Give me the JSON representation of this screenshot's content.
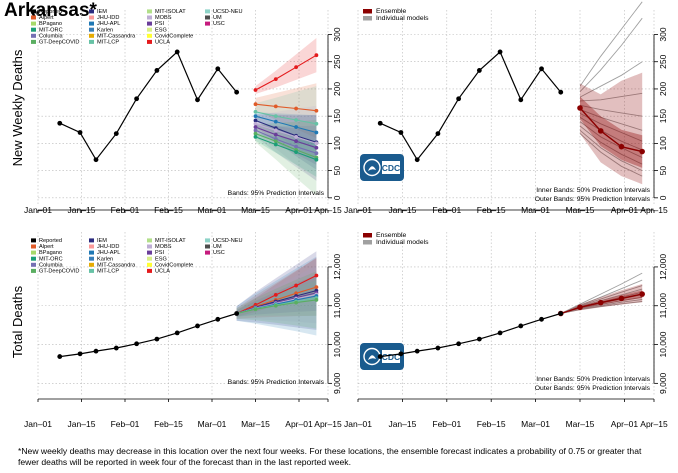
{
  "page": {
    "title": "Arkansas*",
    "footnote": "*New weekly deaths may decrease in this location over the next four weeks. For these locations, the ensemble forecast indicates a probability of 0.75 or greater that fewer deaths will be reported in week four of the forecast than in the last reported week."
  },
  "colors": {
    "reported": "#000000",
    "ensemble": "#8b0000",
    "individual": "#a0a0a0",
    "cdc_logo": "#1a5b8e"
  },
  "icons": {
    "cdc_logo": "cdc-logo-icon"
  },
  "legend_models": [
    {
      "name": "Reported",
      "color": "#000000"
    },
    {
      "name": "Alpert",
      "color": "#e05a28"
    },
    {
      "name": "BPagano",
      "color": "#a6d96a"
    },
    {
      "name": "MIT-ORC",
      "color": "#1b9e77"
    },
    {
      "name": "Columbia",
      "color": "#7570b3"
    },
    {
      "name": "GT-DeepCOVID",
      "color": "#5aae61"
    },
    {
      "name": "IEM",
      "color": "#2b2b7f"
    },
    {
      "name": "JHU-IDD",
      "color": "#fb9a99"
    },
    {
      "name": "JHU-APL",
      "color": "#1f78b4"
    },
    {
      "name": "Karlen",
      "color": "#377eb8"
    },
    {
      "name": "MIT-Cassandra",
      "color": "#e6ab02"
    },
    {
      "name": "MIT-LCP",
      "color": "#66c2a5"
    },
    {
      "name": "MIT-ISOLAT",
      "color": "#b2df8a"
    },
    {
      "name": "MOBS",
      "color": "#beaed4"
    },
    {
      "name": "PSI",
      "color": "#6a3d9a"
    },
    {
      "name": "ESG",
      "color": "#d9ef8b"
    },
    {
      "name": "CovidComplete",
      "color": "#ffff33"
    },
    {
      "name": "UCLA",
      "color": "#e41a1c"
    },
    {
      "name": "UCSD-NEU",
      "color": "#8dd3c7"
    },
    {
      "name": "UM",
      "color": "#4d4d4d"
    },
    {
      "name": "USC",
      "color": "#c51b7d"
    }
  ],
  "chart_data": [
    {
      "id": "weekly-models",
      "type": "line",
      "ylabel": "New Weekly Deaths",
      "ylim": [
        -15,
        345
      ],
      "yticks": [
        0,
        50,
        100,
        150,
        200,
        250,
        300
      ],
      "ytick_labels": [
        "0",
        "50",
        "100",
        "150",
        "200",
        "250",
        "300"
      ],
      "xlim": [
        0,
        20
      ],
      "xticks": [
        0,
        3,
        6,
        9,
        12,
        15,
        18,
        20
      ],
      "xtick_labels": [
        "Jan–01",
        "Jan–15",
        "Feb–01",
        "Feb–15",
        "Mar–01",
        "Mar–15",
        "Apr–01",
        "Apr–15"
      ],
      "reported": {
        "name": "Reported",
        "x": [
          1.5,
          2.9,
          4.0,
          5.4,
          6.8,
          8.2,
          9.6,
          11.0,
          12.4,
          13.7
        ],
        "y": [
          137,
          120,
          70,
          118,
          182,
          234,
          268,
          180,
          237,
          194
        ]
      },
      "forecast_x": [
        15.0,
        16.4,
        17.8,
        19.2
      ],
      "model_series": [
        {
          "name": "UCLA",
          "values": [
            198,
            218,
            240,
            262
          ]
        },
        {
          "name": "Alpert",
          "values": [
            172,
            168,
            164,
            160
          ]
        },
        {
          "name": "MIT-LCP",
          "values": [
            158,
            150,
            143,
            136
          ]
        },
        {
          "name": "JHU-APL",
          "values": [
            150,
            140,
            130,
            120
          ]
        },
        {
          "name": "IEM",
          "values": [
            142,
            128,
            114,
            102
          ]
        },
        {
          "name": "MOBS",
          "values": [
            136,
            124,
            112,
            100
          ]
        },
        {
          "name": "PSI",
          "values": [
            130,
            116,
            104,
            92
          ]
        },
        {
          "name": "Columbia",
          "values": [
            124,
            108,
            94,
            82
          ]
        },
        {
          "name": "GT-DeepCOVID",
          "values": [
            118,
            104,
            88,
            74
          ]
        },
        {
          "name": "MIT-ORC",
          "values": [
            112,
            98,
            84,
            70
          ]
        }
      ],
      "band_label": "Bands: 95% Prediction Intervals",
      "legend": "legend_models"
    },
    {
      "id": "weekly-ensemble",
      "type": "line",
      "ylabel": "",
      "ylim": [
        -15,
        345
      ],
      "yticks": [
        0,
        50,
        100,
        150,
        200,
        250,
        300
      ],
      "ytick_labels": [
        "0",
        "50",
        "100",
        "150",
        "200",
        "250",
        "300"
      ],
      "xlim": [
        0,
        20
      ],
      "xticks": [
        0,
        3,
        6,
        9,
        12,
        15,
        18,
        20
      ],
      "xtick_labels": [
        "Jan–01",
        "Jan–15",
        "Feb–01",
        "Feb–15",
        "Mar–01",
        "Mar–15",
        "Apr–01",
        "Apr–15"
      ],
      "reported": {
        "name": "Reported",
        "x": [
          1.5,
          2.9,
          4.0,
          5.4,
          6.8,
          8.2,
          9.6,
          11.0,
          12.4,
          13.7
        ],
        "y": [
          137,
          120,
          70,
          118,
          182,
          234,
          268,
          180,
          237,
          194
        ]
      },
      "ensemble": {
        "name": "Ensemble",
        "x": [
          15.0,
          16.4,
          17.8,
          19.2
        ],
        "y": [
          165,
          123,
          94,
          85
        ],
        "inner": [
          [
            145,
            186
          ],
          [
            95,
            150
          ],
          [
            70,
            125
          ],
          [
            55,
            115
          ]
        ],
        "outer": [
          [
            118,
            210
          ],
          [
            65,
            190
          ],
          [
            40,
            215
          ],
          [
            25,
            230
          ]
        ]
      },
      "individual": [
        {
          "values": [
            205,
            260,
            310,
            360
          ]
        },
        {
          "values": [
            195,
            235,
            280,
            330
          ]
        },
        {
          "values": [
            185,
            205,
            225,
            250
          ]
        },
        {
          "values": [
            178,
            180,
            186,
            192
          ]
        },
        {
          "values": [
            170,
            162,
            156,
            150
          ]
        },
        {
          "values": [
            162,
            148,
            136,
            124
          ]
        },
        {
          "values": [
            155,
            136,
            120,
            104
          ]
        },
        {
          "values": [
            148,
            124,
            104,
            88
          ]
        },
        {
          "values": [
            140,
            112,
            92,
            74
          ]
        },
        {
          "values": [
            132,
            102,
            80,
            62
          ]
        },
        {
          "values": [
            124,
            92,
            68,
            50
          ]
        },
        {
          "values": [
            118,
            84,
            58,
            40
          ]
        }
      ],
      "legend": [
        {
          "name": "Ensemble",
          "color": "#8b0000"
        },
        {
          "name": "Individual models",
          "color": "#a0a0a0"
        }
      ],
      "band_labels": [
        "Inner Bands: 50% Prediction Intervals",
        "Outer Bands: 95% Prediction Intervals"
      ]
    },
    {
      "id": "total-models",
      "type": "line",
      "ylabel": "Total Deaths",
      "ylim": [
        8700,
        12900
      ],
      "yticks": [
        9000,
        10000,
        11000,
        12000
      ],
      "ytick_labels": [
        "9,000",
        "10,000",
        "11,000",
        "12,000"
      ],
      "xlim": [
        0,
        20
      ],
      "xticks": [
        0,
        3,
        6,
        9,
        12,
        15,
        18,
        20
      ],
      "xtick_labels": [
        "Jan–01",
        "Jan–15",
        "Feb–01",
        "Feb–15",
        "Mar–01",
        "Mar–15",
        "Apr–01",
        "Apr–15"
      ],
      "reported": {
        "name": "Reported",
        "x": [
          1.5,
          2.9,
          4.0,
          5.4,
          6.8,
          8.2,
          9.6,
          11.0,
          12.4,
          13.7
        ],
        "y": [
          9690,
          9760,
          9830,
          9910,
          10020,
          10140,
          10300,
          10480,
          10650,
          10800
        ]
      },
      "forecast_x": [
        13.7,
        15.0,
        16.4,
        17.8,
        19.2
      ],
      "model_series": [
        {
          "name": "UCLA",
          "values": [
            10800,
            11020,
            11280,
            11520,
            11780
          ]
        },
        {
          "name": "Alpert",
          "values": [
            10800,
            10980,
            11150,
            11320,
            11480
          ]
        },
        {
          "name": "IEM",
          "values": [
            10800,
            10960,
            11110,
            11250,
            11390
          ]
        },
        {
          "name": "PSI",
          "values": [
            10800,
            10950,
            11080,
            11210,
            11330
          ]
        },
        {
          "name": "MOBS",
          "values": [
            10800,
            10940,
            11060,
            11180,
            11290
          ]
        },
        {
          "name": "JHU-APL",
          "values": [
            10800,
            10930,
            11040,
            11150,
            11250
          ]
        },
        {
          "name": "MIT-LCP",
          "values": [
            10800,
            10920,
            11020,
            11110,
            11200
          ]
        },
        {
          "name": "GT-DeepCOVID",
          "values": [
            10800,
            10910,
            11000,
            11080,
            11150
          ]
        }
      ],
      "band_label": "Bands: 95% Prediction Intervals",
      "legend": "legend_models"
    },
    {
      "id": "total-ensemble",
      "type": "line",
      "ylabel": "",
      "ylim": [
        8700,
        12900
      ],
      "yticks": [
        9000,
        10000,
        11000,
        12000
      ],
      "ytick_labels": [
        "9,000",
        "10,000",
        "11,000",
        "12,000"
      ],
      "xlim": [
        0,
        20
      ],
      "xticks": [
        0,
        3,
        6,
        9,
        12,
        15,
        18,
        20
      ],
      "xtick_labels": [
        "Jan–01",
        "Jan–15",
        "Feb–01",
        "Feb–15",
        "Mar–01",
        "Mar–15",
        "Apr–01",
        "Apr–15"
      ],
      "reported": {
        "name": "Reported",
        "x": [
          1.5,
          2.9,
          4.0,
          5.4,
          6.8,
          8.2,
          9.6,
          11.0,
          12.4,
          13.7
        ],
        "y": [
          9690,
          9760,
          9830,
          9910,
          10020,
          10140,
          10300,
          10480,
          10650,
          10800
        ]
      },
      "ensemble": {
        "name": "Ensemble",
        "x": [
          13.7,
          15.0,
          16.4,
          17.8,
          19.2
        ],
        "y": [
          10800,
          10960,
          11080,
          11190,
          11300
        ],
        "inner": [
          [
            10800,
            10800
          ],
          [
            10930,
            10990
          ],
          [
            11030,
            11130
          ],
          [
            11120,
            11270
          ],
          [
            11200,
            11400
          ]
        ],
        "outer": [
          [
            10800,
            10800
          ],
          [
            10880,
            11040
          ],
          [
            10960,
            11220
          ],
          [
            11030,
            11400
          ],
          [
            11090,
            11560
          ]
        ]
      },
      "individual": [
        {
          "values": [
            10800,
            11040,
            11300,
            11560,
            11840
          ]
        },
        {
          "values": [
            10800,
            11010,
            11220,
            11440,
            11660
          ]
        },
        {
          "values": [
            10800,
            10990,
            11170,
            11350,
            11520
          ]
        },
        {
          "values": [
            10800,
            10970,
            11130,
            11280,
            11430
          ]
        },
        {
          "values": [
            10800,
            10950,
            11090,
            11220,
            11350
          ]
        },
        {
          "values": [
            10800,
            10940,
            11060,
            11180,
            11290
          ]
        },
        {
          "values": [
            10800,
            10920,
            11030,
            11130,
            11220
          ]
        },
        {
          "values": [
            10800,
            10910,
            11000,
            11090,
            11160
          ]
        },
        {
          "values": [
            10800,
            10900,
            10980,
            11050,
            11110
          ]
        }
      ],
      "legend": [
        {
          "name": "Ensemble",
          "color": "#8b0000"
        },
        {
          "name": "Individual models",
          "color": "#a0a0a0"
        }
      ],
      "band_labels": [
        "Inner Bands: 50% Prediction Intervals",
        "Outer Bands: 95% Prediction Intervals"
      ]
    }
  ]
}
